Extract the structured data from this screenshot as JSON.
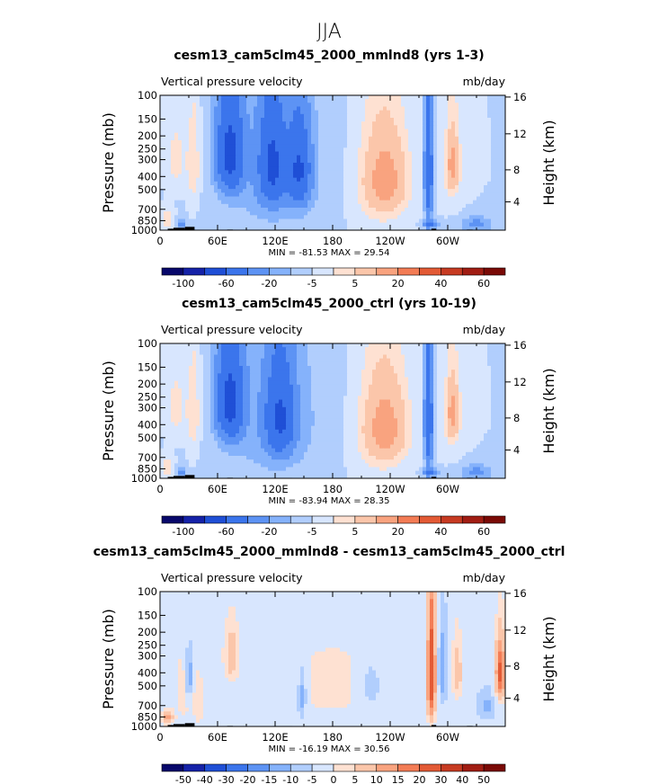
{
  "figure_title": "JJA",
  "chart_data": [
    {
      "type": "heatmap",
      "title": "cesm13_cam5clm45_2000_mmlnd8 (yrs 1-3)",
      "subtitle_left": "Vertical pressure velocity",
      "units": "mb/day",
      "xlabel": "",
      "ylabel": "Pressure (mb)",
      "ylabel_right": "Height (km)",
      "x_ticks": [
        "0",
        "60E",
        "120E",
        "180",
        "120W",
        "60W"
      ],
      "y_ticks": [
        "100",
        "150",
        "200",
        "250",
        "300",
        "400",
        "500",
        "700",
        "850",
        "1000"
      ],
      "y_right_ticks": [
        "16",
        "12",
        "8",
        "4"
      ],
      "min_max_text": "MIN = -81.53   MAX =   29.54",
      "colorbar_labels": [
        "-100",
        "-60",
        "-20",
        "-5",
        "5",
        "20",
        "40",
        "60"
      ],
      "colorbar_levels": [
        -100,
        -80,
        -60,
        -40,
        -20,
        -10,
        -5,
        0,
        5,
        10,
        20,
        30,
        40,
        50,
        60,
        70
      ],
      "min": -81.53,
      "max": 29.54,
      "regions": [
        {
          "lon": 118,
          "p": 360,
          "rx": 60,
          "rp": 640,
          "v": -8
        },
        {
          "lon": 230,
          "p": 460,
          "rx": 30,
          "rp": 480,
          "v": 8
        },
        {
          "lon": 305,
          "p": 330,
          "rx": 10,
          "rp": 300,
          "v": 6
        },
        {
          "lon": 17,
          "p": 300,
          "rx": 10,
          "rp": 170,
          "v": 8
        },
        {
          "lon": 35,
          "p": 330,
          "rx": 7,
          "rp": 300,
          "v": 10
        },
        {
          "lon": 22,
          "p": 900,
          "rx": 5,
          "rp": 80,
          "v": -14
        },
        {
          "lon": 8,
          "p": 830,
          "rx": 6,
          "rp": 120,
          "v": 10
        },
        {
          "lon": 73,
          "p": 270,
          "rx": 13,
          "rp": 210,
          "v": -45
        },
        {
          "lon": 117,
          "p": 330,
          "rx": 13,
          "rp": 260,
          "v": -40
        },
        {
          "lon": 145,
          "p": 360,
          "rx": 11,
          "rp": 240,
          "v": -38
        },
        {
          "lon": 235,
          "p": 420,
          "rx": 20,
          "rp": 260,
          "v": 20
        },
        {
          "lon": 280,
          "p": 380,
          "rx": 4,
          "rp": 380,
          "v": -40
        },
        {
          "lon": 282,
          "p": 900,
          "rx": 8,
          "rp": 70,
          "v": -20
        },
        {
          "lon": 305,
          "p": 330,
          "rx": 6,
          "rp": 160,
          "v": 20
        },
        {
          "lon": 330,
          "p": 900,
          "rx": 18,
          "rp": 120,
          "v": -12
        }
      ]
    },
    {
      "type": "heatmap",
      "title": "cesm13_cam5clm45_2000_ctrl (yrs 10-19)",
      "subtitle_left": "Vertical pressure velocity",
      "units": "mb/day",
      "xlabel": "",
      "ylabel": "Pressure (mb)",
      "ylabel_right": "Height (km)",
      "x_ticks": [
        "0",
        "60E",
        "120E",
        "180",
        "120W",
        "60W"
      ],
      "y_ticks": [
        "100",
        "150",
        "200",
        "250",
        "300",
        "400",
        "500",
        "700",
        "850",
        "1000"
      ],
      "y_right_ticks": [
        "16",
        "12",
        "8",
        "4"
      ],
      "min_max_text": "MIN = -83.94   MAX =   28.35",
      "colorbar_labels": [
        "-100",
        "-60",
        "-20",
        "-5",
        "5",
        "20",
        "40",
        "60"
      ],
      "colorbar_levels": [
        -100,
        -80,
        -60,
        -40,
        -20,
        -10,
        -5,
        0,
        5,
        10,
        20,
        30,
        40,
        50,
        60,
        70
      ],
      "min": -83.94,
      "max": 28.35,
      "regions": [
        {
          "lon": 118,
          "p": 360,
          "rx": 60,
          "rp": 640,
          "v": -8
        },
        {
          "lon": 230,
          "p": 460,
          "rx": 30,
          "rp": 480,
          "v": 8
        },
        {
          "lon": 305,
          "p": 330,
          "rx": 10,
          "rp": 300,
          "v": 6
        },
        {
          "lon": 17,
          "p": 300,
          "rx": 10,
          "rp": 170,
          "v": 8
        },
        {
          "lon": 35,
          "p": 330,
          "rx": 7,
          "rp": 300,
          "v": 10
        },
        {
          "lon": 22,
          "p": 900,
          "rx": 5,
          "rp": 80,
          "v": -14
        },
        {
          "lon": 8,
          "p": 830,
          "rx": 6,
          "rp": 120,
          "v": 10
        },
        {
          "lon": 73,
          "p": 270,
          "rx": 13,
          "rp": 210,
          "v": -45
        },
        {
          "lon": 125,
          "p": 360,
          "rx": 14,
          "rp": 260,
          "v": -38
        },
        {
          "lon": 235,
          "p": 420,
          "rx": 20,
          "rp": 260,
          "v": 20
        },
        {
          "lon": 280,
          "p": 380,
          "rx": 4,
          "rp": 380,
          "v": -40
        },
        {
          "lon": 282,
          "p": 900,
          "rx": 8,
          "rp": 70,
          "v": -20
        },
        {
          "lon": 305,
          "p": 330,
          "rx": 6,
          "rp": 160,
          "v": 20
        },
        {
          "lon": 330,
          "p": 900,
          "rx": 18,
          "rp": 120,
          "v": -12
        }
      ]
    },
    {
      "type": "heatmap",
      "title": "cesm13_cam5clm45_2000_mmlnd8 - cesm13_cam5clm45_2000_ctrl",
      "subtitle_left": "Vertical pressure velocity",
      "units": "mb/day",
      "xlabel": "",
      "ylabel": "Pressure (mb)",
      "ylabel_right": "Height (km)",
      "x_ticks": [
        "0",
        "60E",
        "120E",
        "180",
        "120W",
        "60W"
      ],
      "y_ticks": [
        "100",
        "150",
        "200",
        "250",
        "300",
        "400",
        "500",
        "700",
        "850",
        "1000"
      ],
      "y_right_ticks": [
        "16",
        "12",
        "8",
        "4"
      ],
      "min_max_text": "MIN = -16.19   MAX =   30.56",
      "colorbar_labels": [
        "-50",
        "-40",
        "-30",
        "-20",
        "-15",
        "-10",
        "-5",
        "0",
        "5",
        "10",
        "15",
        "20",
        "30",
        "40",
        "50"
      ],
      "colorbar_levels": [
        -50,
        -40,
        -30,
        -20,
        -15,
        -10,
        -5,
        -2,
        2,
        5,
        10,
        15,
        20,
        30,
        40,
        50
      ],
      "min": -16.19,
      "max": 30.56,
      "regions": [
        {
          "lon": 180,
          "p": 500,
          "rx": 90,
          "rp": 500,
          "v": 2.5
        },
        {
          "lon": 100,
          "p": 450,
          "rx": 25,
          "rp": 400,
          "v": -2
        },
        {
          "lon": 25,
          "p": 550,
          "rx": 8,
          "rp": 350,
          "v": 4
        },
        {
          "lon": 40,
          "p": 650,
          "rx": 6,
          "rp": 300,
          "v": 4
        },
        {
          "lon": 8,
          "p": 850,
          "rx": 6,
          "rp": 100,
          "v": 12
        },
        {
          "lon": 30,
          "p": 430,
          "rx": 4,
          "rp": 200,
          "v": -10
        },
        {
          "lon": 75,
          "p": 300,
          "rx": 8,
          "rp": 150,
          "v": 8
        },
        {
          "lon": 148,
          "p": 600,
          "rx": 5,
          "rp": 300,
          "v": -8
        },
        {
          "lon": 220,
          "p": 500,
          "rx": 12,
          "rp": 200,
          "v": -6
        },
        {
          "lon": 283,
          "p": 420,
          "rx": 4,
          "rp": 380,
          "v": 28
        },
        {
          "lon": 295,
          "p": 380,
          "rx": 5,
          "rp": 280,
          "v": -8
        },
        {
          "lon": 310,
          "p": 400,
          "rx": 5,
          "rp": 200,
          "v": 8
        },
        {
          "lon": 340,
          "p": 700,
          "rx": 10,
          "rp": 200,
          "v": -6
        },
        {
          "lon": 355,
          "p": 400,
          "rx": 5,
          "rp": 200,
          "v": 22
        }
      ]
    }
  ],
  "colors": {
    "neg": [
      "#08086b",
      "#1522a8",
      "#1f4fd6",
      "#3b75ec",
      "#5d93f4",
      "#85b2fb",
      "#b1cefd",
      "#d8e6fe"
    ],
    "pos": [
      "#fee1d2",
      "#fbc6aa",
      "#f9a37f",
      "#f37c55",
      "#e35a35",
      "#c73b22",
      "#a11d13",
      "#7a0a06"
    ],
    "topo": "#000000",
    "axis": "#000000"
  }
}
